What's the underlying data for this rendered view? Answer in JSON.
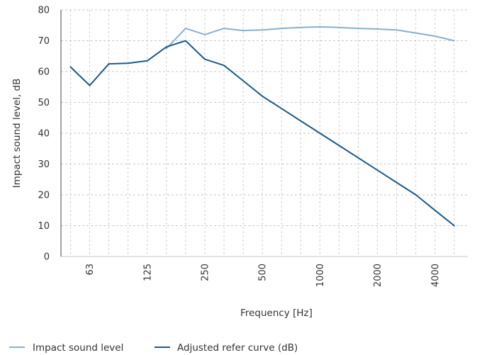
{
  "chart_data": {
    "type": "line",
    "xlabel": "Frequency [Hz]",
    "ylabel": "Impact sound level, dB",
    "ylim": [
      0,
      80
    ],
    "yticks": [
      "0",
      "10",
      "20",
      "30",
      "40",
      "50",
      "60",
      "70",
      "80"
    ],
    "xtick_labels": [
      "63",
      "125",
      "250",
      "500",
      "1000",
      "2000",
      "4000"
    ],
    "x_band_count": 21,
    "grid": true,
    "legend_position": "bottom-left",
    "series": [
      {
        "name": "Impact sound level",
        "color": "#8bafcf",
        "band_index": [
          5,
          6,
          7,
          8,
          9,
          10,
          11,
          12,
          13,
          14,
          15,
          16,
          17,
          18,
          19,
          20
        ],
        "values": [
          67.5,
          74,
          72,
          74,
          73.3,
          73.5,
          74,
          74.3,
          74.5,
          74.3,
          74,
          73.8,
          73.5,
          72.5,
          71.5,
          70
        ]
      },
      {
        "name": "Adjusted refer curve (dB)",
        "color": "#1c5a8c",
        "band_index": [
          0,
          1,
          2,
          3,
          4,
          5,
          6,
          7,
          8,
          9,
          10,
          11,
          12,
          13,
          14,
          15,
          16,
          17,
          18,
          19,
          20
        ],
        "values": [
          61.5,
          55.5,
          62.5,
          62.7,
          63.5,
          68,
          70,
          64,
          62,
          57,
          52,
          48,
          44,
          40,
          36,
          32,
          28,
          24,
          20,
          15,
          10
        ]
      }
    ]
  }
}
